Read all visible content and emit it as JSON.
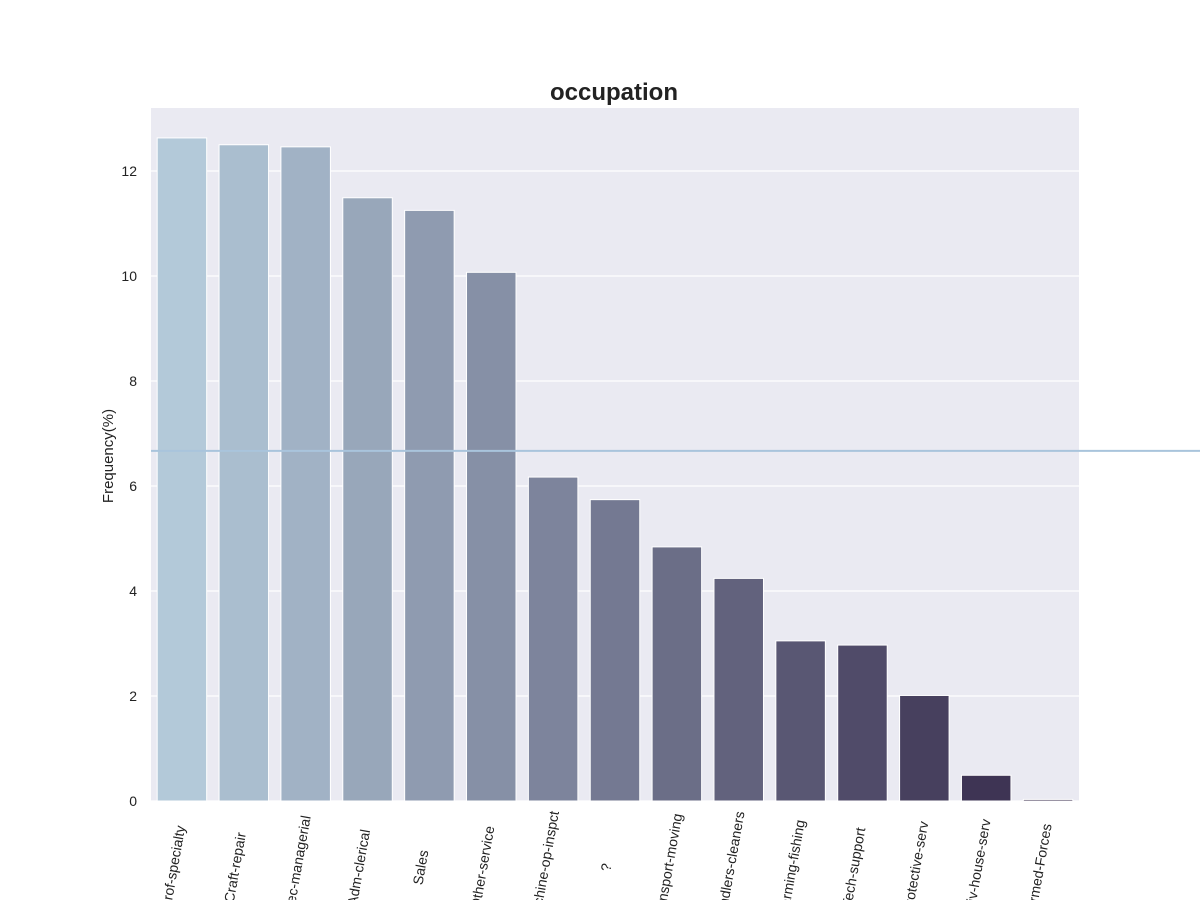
{
  "chart_data": {
    "type": "bar",
    "title": "occupation",
    "xlabel": "",
    "ylabel": "Frequency(%)",
    "categories": [
      "Prof-specialty",
      "Craft-repair",
      "Exec-managerial",
      "Adm-clerical",
      "Sales",
      "Other-service",
      "Machine-op-inspct",
      "?",
      "Transport-moving",
      "Handlers-cleaners",
      "Farming-fishing",
      "Tech-support",
      "Protective-serv",
      "Priv-house-serv",
      "Armed-Forces"
    ],
    "values": [
      12.63,
      12.5,
      12.46,
      11.49,
      11.25,
      10.07,
      6.17,
      5.74,
      4.84,
      4.24,
      3.05,
      2.97,
      2.01,
      0.49,
      0.03
    ],
    "ylim": [
      0,
      13.2
    ],
    "yticks": [
      0,
      2,
      4,
      6,
      8,
      10,
      12
    ],
    "reference_line": 6.67,
    "grid": true,
    "colors": {
      "background": "#eaeaf2",
      "grid": "#ffffff",
      "reference_line": "#a9c4dc",
      "bar_start": "#b3c9d9",
      "bar_end": "#35294a"
    }
  }
}
